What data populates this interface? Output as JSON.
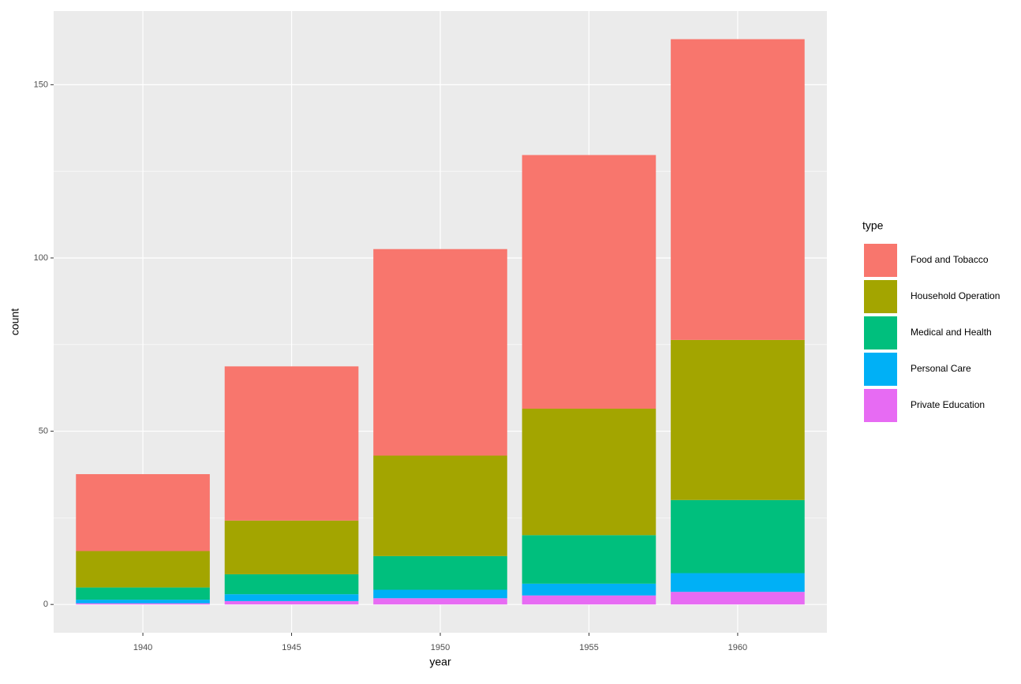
{
  "chart_data": {
    "type": "stacked_bar",
    "x_label": "year",
    "y_label": "count",
    "legend_title": "type",
    "x": [
      1940,
      1945,
      1950,
      1955,
      1960
    ],
    "series": [
      {
        "name": "Food and Tobacco",
        "color": "#F8766D",
        "values": [
          22.2,
          44.5,
          59.6,
          73.2,
          86.8
        ]
      },
      {
        "name": "Household Operation",
        "color": "#A3A500",
        "values": [
          10.5,
          15.5,
          29.0,
          36.5,
          46.2
        ]
      },
      {
        "name": "Medical and Health",
        "color": "#00BF7D",
        "values": [
          3.53,
          5.76,
          9.71,
          14.0,
          21.1
        ]
      },
      {
        "name": "Personal Care",
        "color": "#00B0F6",
        "values": [
          1.04,
          1.98,
          2.45,
          3.4,
          5.4
        ]
      },
      {
        "name": "Private Education",
        "color": "#E76BF3",
        "values": [
          0.341,
          0.974,
          1.8,
          2.6,
          3.64
        ]
      }
    ],
    "bar_width": 4.5,
    "xlim": [
      1937,
      1963
    ],
    "xticks": [
      1940,
      1945,
      1950,
      1955,
      1960
    ],
    "ylim": [
      -8.155,
      171.255
    ],
    "yticks": [
      0,
      50,
      100,
      150
    ],
    "minor_yticks": [
      25,
      75,
      125
    ],
    "grid": true,
    "legend_position": "right"
  }
}
